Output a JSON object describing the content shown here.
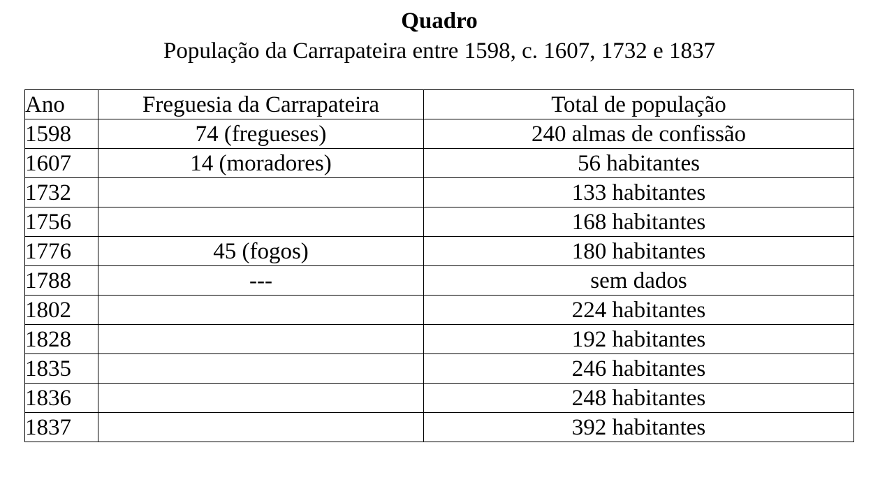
{
  "title": "Quadro",
  "subtitle": "População da Carrapateira entre 1598, c. 1607, 1732 e 1837",
  "table": {
    "headers": {
      "ano": "Ano",
      "freguesia": "Freguesia da Carrapateira",
      "total": "Total de população"
    },
    "rows": [
      {
        "ano": "1598",
        "freguesia": "74 (fregueses)",
        "total": "240 almas de confissão"
      },
      {
        "ano": "1607",
        "freguesia": "14 (moradores)",
        "total": "56 habitantes"
      },
      {
        "ano": "1732",
        "freguesia": "",
        "total": "133 habitantes"
      },
      {
        "ano": "1756",
        "freguesia": "",
        "total": "168 habitantes"
      },
      {
        "ano": "1776",
        "freguesia": "45 (fogos)",
        "total": "180 habitantes"
      },
      {
        "ano": "1788",
        "freguesia": "---",
        "total": "sem dados"
      },
      {
        "ano": "1802",
        "freguesia": "",
        "total": "224 habitantes"
      },
      {
        "ano": "1828",
        "freguesia": "",
        "total": "192 habitantes"
      },
      {
        "ano": "1835",
        "freguesia": "",
        "total": "246 habitantes"
      },
      {
        "ano": "1836",
        "freguesia": "",
        "total": "248 habitantes"
      },
      {
        "ano": "1837",
        "freguesia": "",
        "total": "392 habitantes"
      }
    ]
  }
}
